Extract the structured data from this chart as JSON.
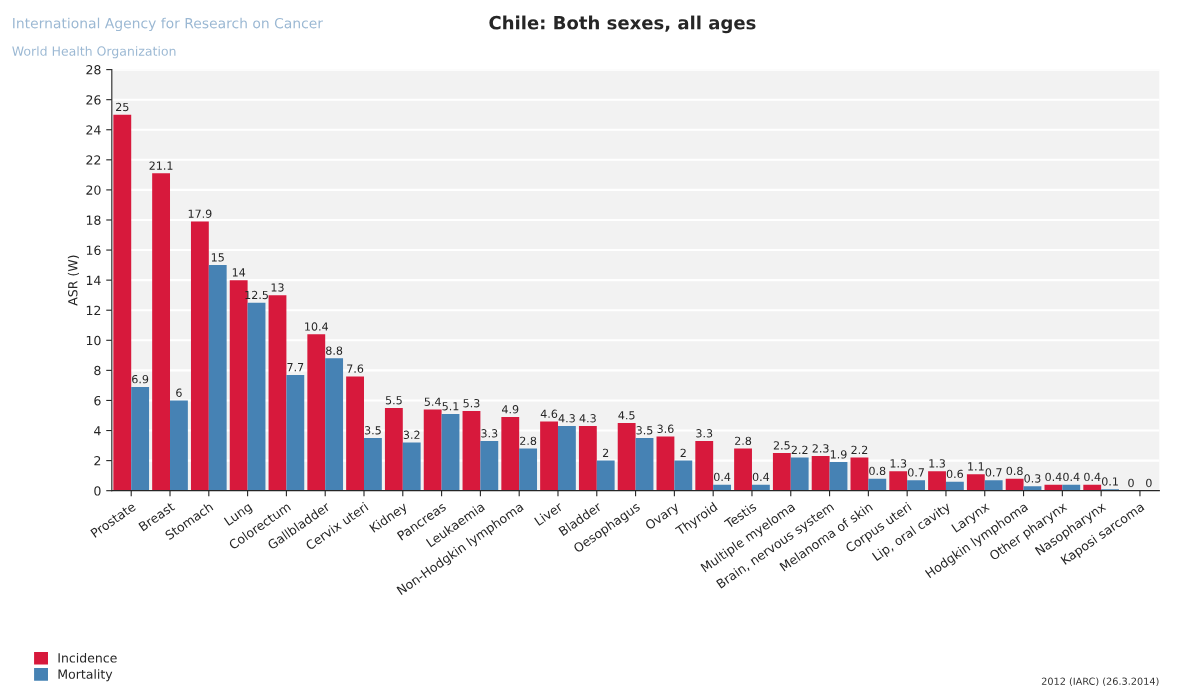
{
  "chart_data": {
    "type": "bar",
    "title": "Chile: Both sexes, all ages",
    "ylabel": "ASR (W)",
    "categories": [
      "Prostate",
      "Breast",
      "Stomach",
      "Lung",
      "Colorectum",
      "Gallbladder",
      "Cervix uteri",
      "Kidney",
      "Pancreas",
      "Leukaemia",
      "Non-Hodgkin lymphoma",
      "Liver",
      "Bladder",
      "Oesophagus",
      "Ovary",
      "Thyroid",
      "Testis",
      "Multiple myeloma",
      "Brain, nervous system",
      "Melanoma of skin",
      "Corpus uteri",
      "Lip, oral cavity",
      "Larynx",
      "Hodgkin lymphoma",
      "Other pharynx",
      "Nasopharynx",
      "Kaposi sarcoma"
    ],
    "series": [
      {
        "name": "Incidence",
        "color": "#d7193c",
        "values": [
          25,
          21.1,
          17.9,
          14,
          13,
          10.4,
          7.6,
          5.5,
          5.4,
          5.3,
          4.9,
          4.6,
          4.3,
          4.5,
          3.6,
          3.3,
          2.8,
          2.5,
          2.3,
          2.2,
          1.3,
          1.3,
          1.1,
          0.8,
          0.4,
          0.4,
          0
        ]
      },
      {
        "name": "Mortality",
        "color": "#4682b4",
        "values": [
          6.9,
          6,
          15,
          12.5,
          7.7,
          8.8,
          3.5,
          3.2,
          5.1,
          3.3,
          2.8,
          4.3,
          2,
          3.5,
          2,
          0.4,
          0.4,
          2.2,
          1.9,
          0.8,
          0.7,
          0.6,
          0.7,
          0.3,
          0.4,
          0.1,
          0
        ]
      }
    ],
    "ylim": [
      0,
      28
    ],
    "yticks": [
      0,
      2,
      4,
      6,
      8,
      10,
      12,
      14,
      16,
      18,
      20,
      22,
      24,
      26,
      28
    ],
    "grid": "y",
    "data_labels": true,
    "legend": "bottom left",
    "annotations": [
      "International Agency for Research on Cancer",
      "World Health Organization",
      "2012 (IARC) (26.3.2014)"
    ]
  }
}
